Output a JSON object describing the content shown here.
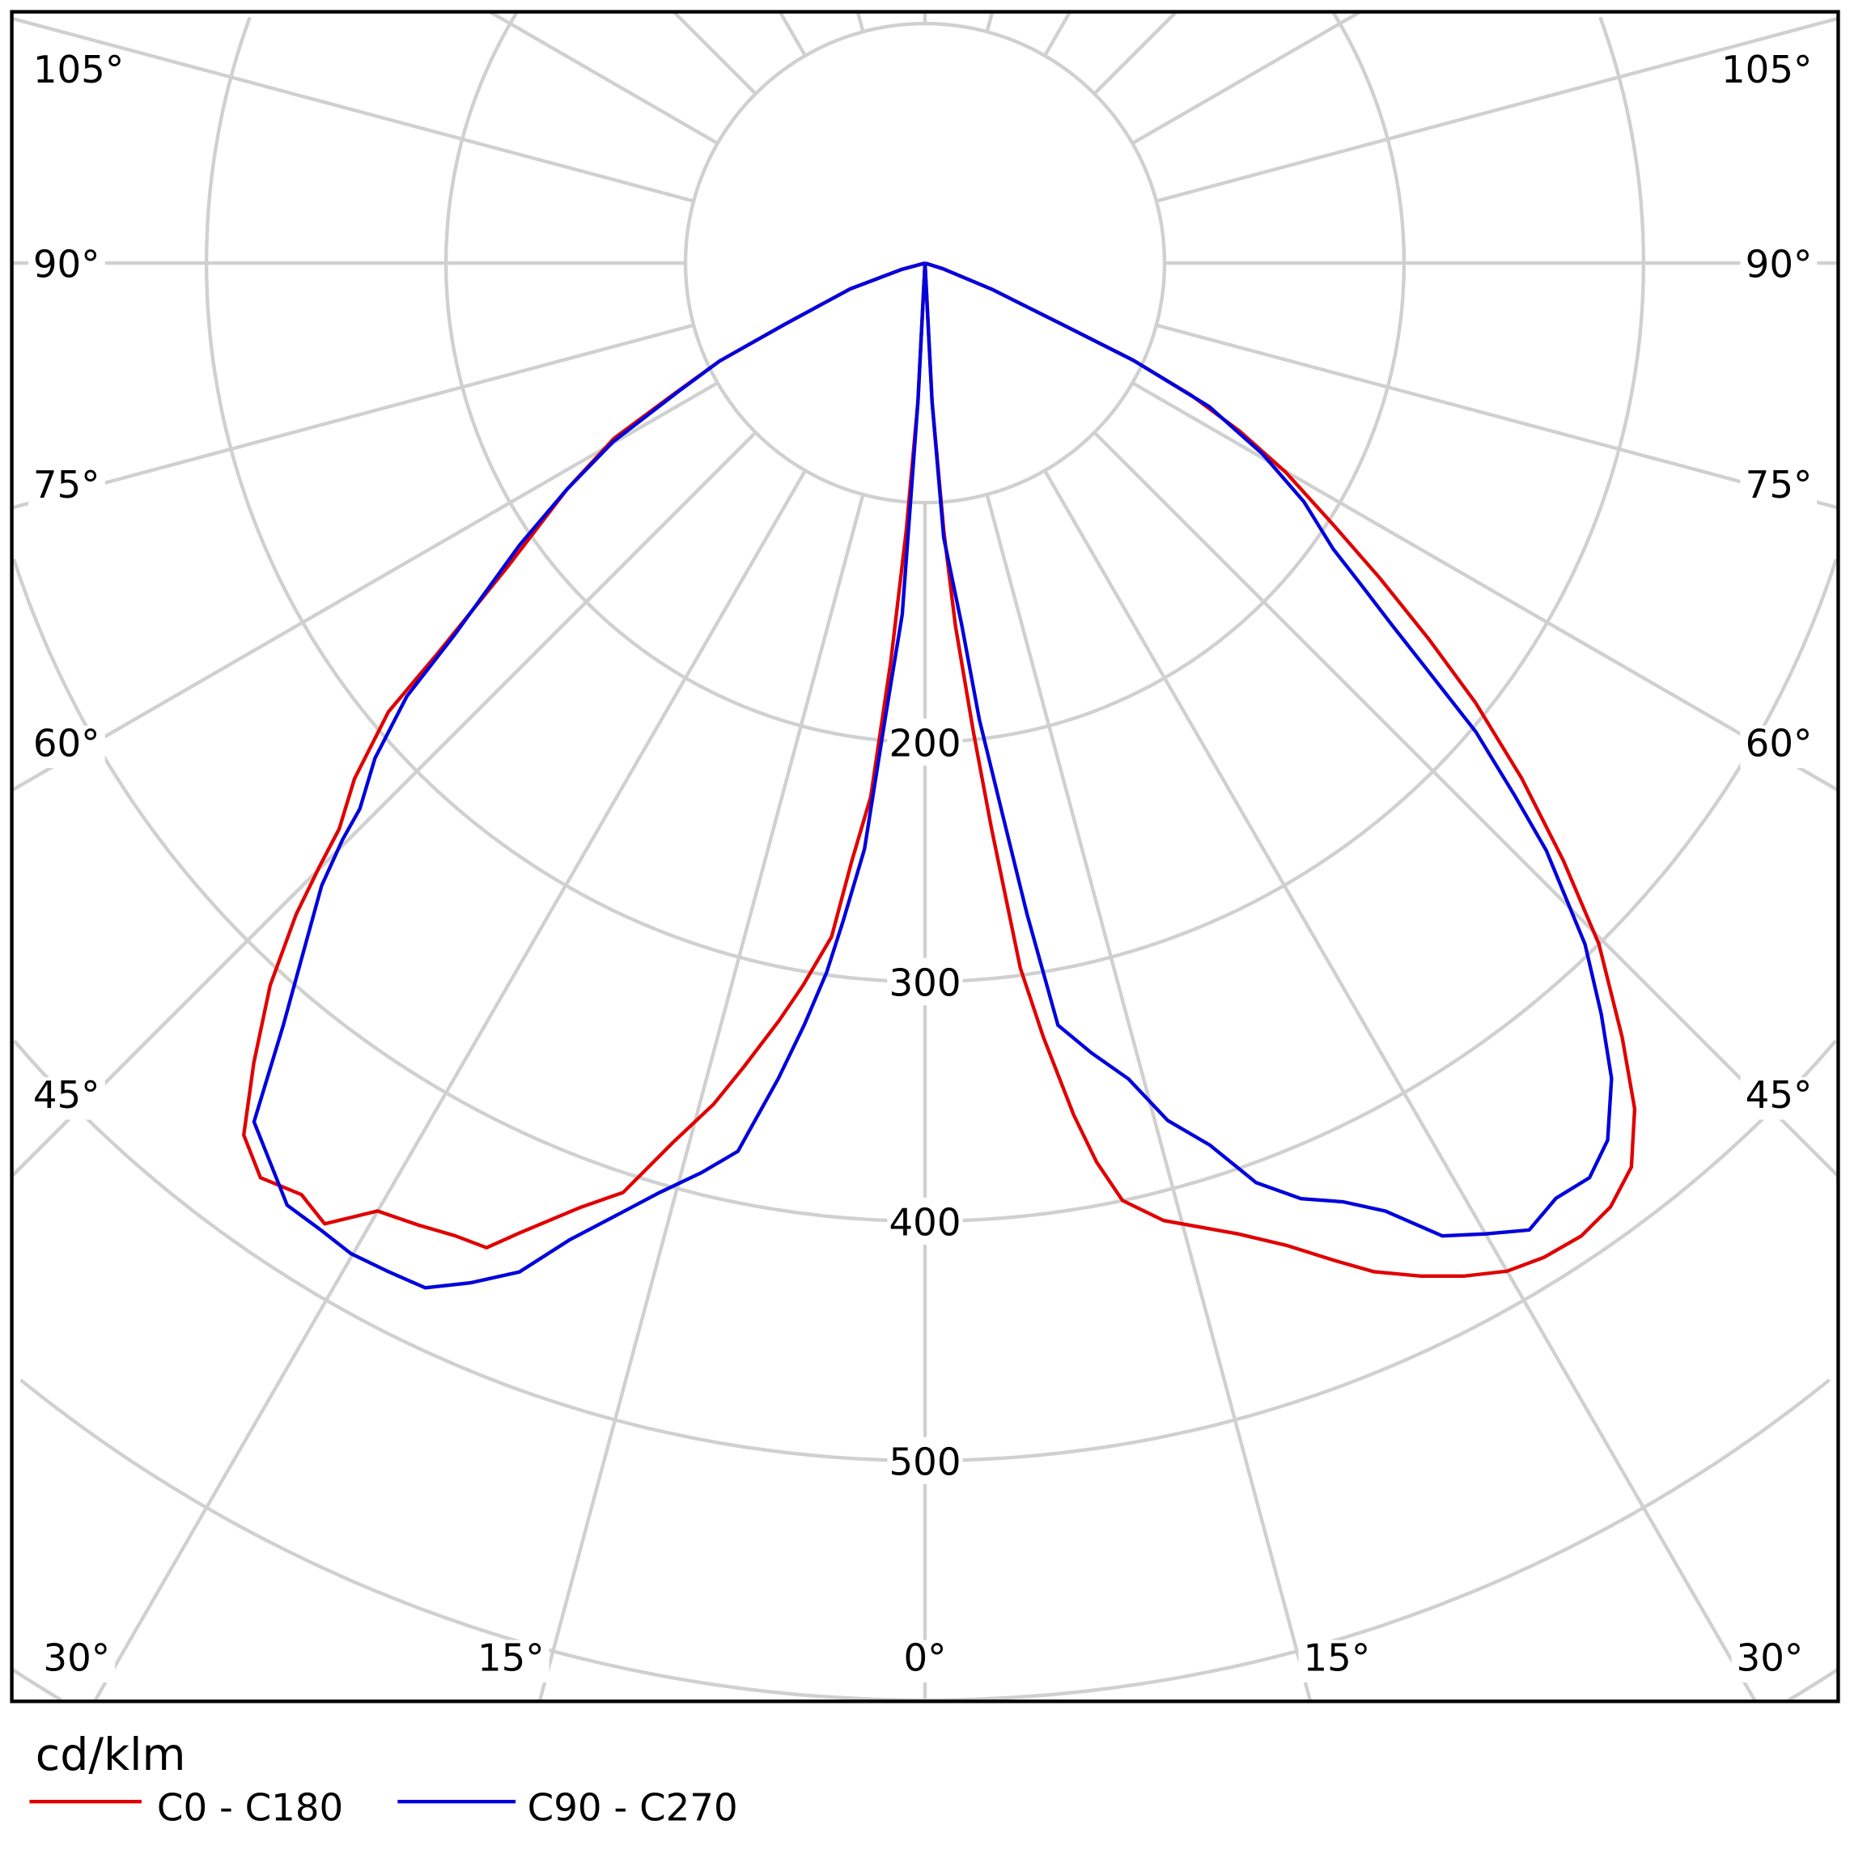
{
  "chart_data": {
    "type": "polar-line",
    "title": "",
    "unit_label": "cd/klm",
    "radial_axis": {
      "max": 700,
      "step": 100,
      "tick_labels": [
        "200",
        "300",
        "400",
        "500"
      ],
      "tick_values": [
        200,
        300,
        400,
        500
      ]
    },
    "angle_labels": {
      "left": [
        {
          "value": 105,
          "text": "105°"
        },
        {
          "value": 90,
          "text": "90°"
        },
        {
          "value": 75,
          "text": "75°"
        },
        {
          "value": 60,
          "text": "60°"
        },
        {
          "value": 45,
          "text": "45°"
        }
      ],
      "right": [
        {
          "value": 105,
          "text": "105°"
        },
        {
          "value": 90,
          "text": "90°"
        },
        {
          "value": 75,
          "text": "75°"
        },
        {
          "value": 60,
          "text": "60°"
        },
        {
          "value": 45,
          "text": "45°"
        }
      ],
      "bottom": [
        {
          "value": -30,
          "text": "30°"
        },
        {
          "value": -15,
          "text": "15°"
        },
        {
          "value": 0,
          "text": "0°"
        },
        {
          "value": 15,
          "text": "15°"
        },
        {
          "value": 30,
          "text": "30°"
        }
      ]
    },
    "grid": true,
    "legend_position": "bottom-left",
    "series": [
      {
        "name": "C0 - C180",
        "color": "#e00000",
        "left": [
          [
            0,
            0
          ],
          [
            2.9,
            58
          ],
          [
            4.0,
            112
          ],
          [
            4.9,
            167
          ],
          [
            5.8,
            224
          ],
          [
            7.0,
            252
          ],
          [
            7.9,
            284
          ],
          [
            9.6,
            306
          ],
          [
            10.9,
            322
          ],
          [
            12.7,
            344
          ],
          [
            14.1,
            362
          ],
          [
            16.0,
            382
          ],
          [
            18.0,
            408
          ],
          [
            20.1,
            420
          ],
          [
            22.7,
            439
          ],
          [
            24.0,
            450
          ],
          [
            25.8,
            451
          ],
          [
            27.8,
            454
          ],
          [
            30.0,
            457
          ],
          [
            32.0,
            473
          ],
          [
            33.8,
            468
          ],
          [
            36.0,
            472
          ],
          [
            38.0,
            462
          ],
          [
            40.0,
            436
          ],
          [
            42.2,
            407
          ],
          [
            44.0,
            378
          ],
          [
            45.1,
            357
          ],
          [
            46.0,
            340
          ],
          [
            47.9,
            321
          ],
          [
            50.1,
            292
          ],
          [
            51.3,
            261
          ],
          [
            54.0,
            215
          ],
          [
            57.7,
            177
          ],
          [
            60.6,
            149
          ],
          [
            62.4,
            119
          ],
          [
            64.5,
            95
          ],
          [
            66.4,
            64
          ],
          [
            71.0,
            33
          ],
          [
            75.0,
            10
          ],
          [
            90,
            0
          ]
        ],
        "right": [
          [
            0,
            0
          ],
          [
            2.9,
            58
          ],
          [
            4.0,
            112
          ],
          [
            4.8,
            152
          ],
          [
            5.9,
            197
          ],
          [
            6.7,
            237
          ],
          [
            7.7,
            297
          ],
          [
            8.7,
            327
          ],
          [
            9.9,
            361
          ],
          [
            10.8,
            382
          ],
          [
            11.9,
            400
          ],
          [
            14.0,
            412
          ],
          [
            17.9,
            426
          ],
          [
            20.2,
            437
          ],
          [
            22.3,
            450
          ],
          [
            24.0,
            461
          ],
          [
            26.1,
            471
          ],
          [
            28.0,
            479
          ],
          [
            30.0,
            486
          ],
          [
            31.9,
            489
          ],
          [
            34.0,
            490
          ],
          [
            36.0,
            487
          ],
          [
            38.0,
            479
          ],
          [
            40.0,
            461
          ],
          [
            42.0,
            435
          ],
          [
            44.7,
            400
          ],
          [
            46.9,
            365
          ],
          [
            49.2,
            329
          ],
          [
            51.4,
            294
          ],
          [
            53.3,
            262
          ],
          [
            55.3,
            231
          ],
          [
            57.3,
            203
          ],
          [
            59.9,
            174
          ],
          [
            61.9,
            149
          ],
          [
            63.6,
            124
          ],
          [
            65.0,
            96
          ],
          [
            65.9,
            63
          ],
          [
            68.6,
            30
          ],
          [
            72.6,
            8
          ],
          [
            90,
            0
          ]
        ]
      },
      {
        "name": "C90 - C270",
        "color": "#0000dd",
        "left": [
          [
            0,
            0
          ],
          [
            2.9,
            58
          ],
          [
            3.7,
            147
          ],
          [
            5.0,
            191
          ],
          [
            5.9,
            246
          ],
          [
            7.1,
            277
          ],
          [
            7.9,
            299
          ],
          [
            9.0,
            322
          ],
          [
            10.2,
            346
          ],
          [
            11.9,
            379
          ],
          [
            13.8,
            391
          ],
          [
            16.0,
            404
          ],
          [
            18.1,
            419
          ],
          [
            20.0,
            434
          ],
          [
            21.9,
            454
          ],
          [
            24.0,
            466
          ],
          [
            26.0,
            476
          ],
          [
            28.1,
            477
          ],
          [
            30.1,
            478
          ],
          [
            32.0,
            476
          ],
          [
            34.1,
            475
          ],
          [
            38.0,
            455
          ],
          [
            40.1,
            416
          ],
          [
            41.8,
            391
          ],
          [
            44.1,
            362
          ],
          [
            45.3,
            342
          ],
          [
            46.0,
            328
          ],
          [
            48.0,
            309
          ],
          [
            50.1,
            282
          ],
          [
            51.7,
            250
          ],
          [
            55.2,
            206
          ],
          [
            57.7,
            177
          ],
          [
            60.2,
            150
          ],
          [
            62.5,
            116
          ],
          [
            64.5,
            95
          ],
          [
            66.4,
            64
          ],
          [
            71.0,
            33
          ],
          [
            75.0,
            10
          ],
          [
            90,
            0
          ]
        ],
        "right": [
          [
            0,
            0
          ],
          [
            2.9,
            58
          ],
          [
            3.9,
            115
          ],
          [
            5.8,
            152
          ],
          [
            6.8,
            192
          ],
          [
            8.0,
            232
          ],
          [
            8.9,
            275
          ],
          [
            9.9,
            323
          ],
          [
            11.9,
            337
          ],
          [
            14.0,
            351
          ],
          [
            15.8,
            372
          ],
          [
            17.9,
            387
          ],
          [
            19.8,
            408
          ],
          [
            21.9,
            421
          ],
          [
            24.0,
            429
          ],
          [
            25.9,
            440
          ],
          [
            28.0,
            460
          ],
          [
            30.0,
            468
          ],
          [
            32.0,
            476
          ],
          [
            34.0,
            471
          ],
          [
            36.0,
            472
          ],
          [
            37.9,
            464
          ],
          [
            40.1,
            445
          ],
          [
            42.0,
            422
          ],
          [
            44.1,
            396
          ],
          [
            46.6,
            357
          ],
          [
            47.9,
            332
          ],
          [
            49.6,
            302
          ],
          [
            50.8,
            274
          ],
          [
            52.2,
            247
          ],
          [
            53.6,
            226
          ],
          [
            55.0,
            208
          ],
          [
            57.8,
            187
          ],
          [
            60.5,
            162
          ],
          [
            63.2,
            133
          ],
          [
            65.0,
            96
          ],
          [
            65.9,
            63
          ],
          [
            68.6,
            30
          ],
          [
            72.6,
            8
          ],
          [
            90,
            0
          ]
        ]
      }
    ]
  }
}
